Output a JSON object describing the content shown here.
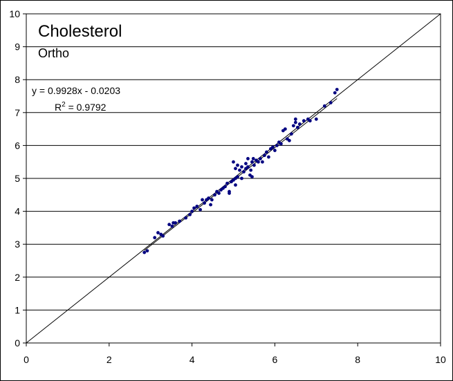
{
  "chart_data": {
    "type": "scatter",
    "title": "Cholesterol",
    "subtitle": "Ortho",
    "equation": "y = 0.9928x - 0.0203",
    "r_squared_prefix": "R",
    "r_squared_exp": "2",
    "r_squared_value": " = 0.9792",
    "xlim": [
      0,
      10
    ],
    "ylim": [
      0,
      10
    ],
    "x_ticks": [
      "0",
      "2",
      "4",
      "6",
      "8",
      "10"
    ],
    "y_ticks": [
      "0",
      "1",
      "2",
      "3",
      "4",
      "5",
      "6",
      "7",
      "8",
      "9",
      "10"
    ],
    "grid": "horizontal",
    "point_color": "#000080",
    "trendline": {
      "slope": 0.9928,
      "intercept": -0.0203
    },
    "identity_line": true,
    "x": [
      2.85,
      2.92,
      3.1,
      3.18,
      3.25,
      3.3,
      3.45,
      3.52,
      3.6,
      3.7,
      3.85,
      3.95,
      4.0,
      4.05,
      4.12,
      4.2,
      4.3,
      4.35,
      4.4,
      4.48,
      4.55,
      4.6,
      4.7,
      4.75,
      4.8,
      4.85,
      4.9,
      4.95,
      5.0,
      5.05,
      5.05,
      5.1,
      5.15,
      5.2,
      5.25,
      5.3,
      5.3,
      5.35,
      5.4,
      5.42,
      5.45,
      5.48,
      5.5,
      5.55,
      5.6,
      5.65,
      5.7,
      5.75,
      5.8,
      5.85,
      5.9,
      6.0,
      6.05,
      6.1,
      6.15,
      6.2,
      6.25,
      6.3,
      6.4,
      6.45,
      6.5,
      6.55,
      6.6,
      6.7,
      6.8,
      6.85,
      7.0,
      7.2,
      7.35,
      7.45,
      7.5,
      5.0,
      5.1,
      5.2,
      5.35,
      5.45,
      4.9,
      4.65,
      4.25,
      3.55,
      6.35,
      6.5,
      5.95,
      5.05,
      4.45
    ],
    "y": [
      2.75,
      2.8,
      3.2,
      3.35,
      3.3,
      3.25,
      3.6,
      3.55,
      3.65,
      3.7,
      3.8,
      3.9,
      4.0,
      4.1,
      4.15,
      4.05,
      4.25,
      4.35,
      4.4,
      4.35,
      4.5,
      4.6,
      4.65,
      4.7,
      4.75,
      4.85,
      4.55,
      4.9,
      4.95,
      5.3,
      5.0,
      5.05,
      5.25,
      5.0,
      5.2,
      5.45,
      5.3,
      5.35,
      5.1,
      5.25,
      5.5,
      5.6,
      5.4,
      5.55,
      5.5,
      5.6,
      5.5,
      5.7,
      5.8,
      5.65,
      5.9,
      5.85,
      6.0,
      6.1,
      6.05,
      6.45,
      6.5,
      6.2,
      6.35,
      6.6,
      6.7,
      6.55,
      6.65,
      6.75,
      6.8,
      6.75,
      6.8,
      7.2,
      7.3,
      7.6,
      7.7,
      5.5,
      5.4,
      5.35,
      5.6,
      5.05,
      4.6,
      4.55,
      4.35,
      3.65,
      6.15,
      6.8,
      5.95,
      4.8,
      4.2
    ]
  }
}
